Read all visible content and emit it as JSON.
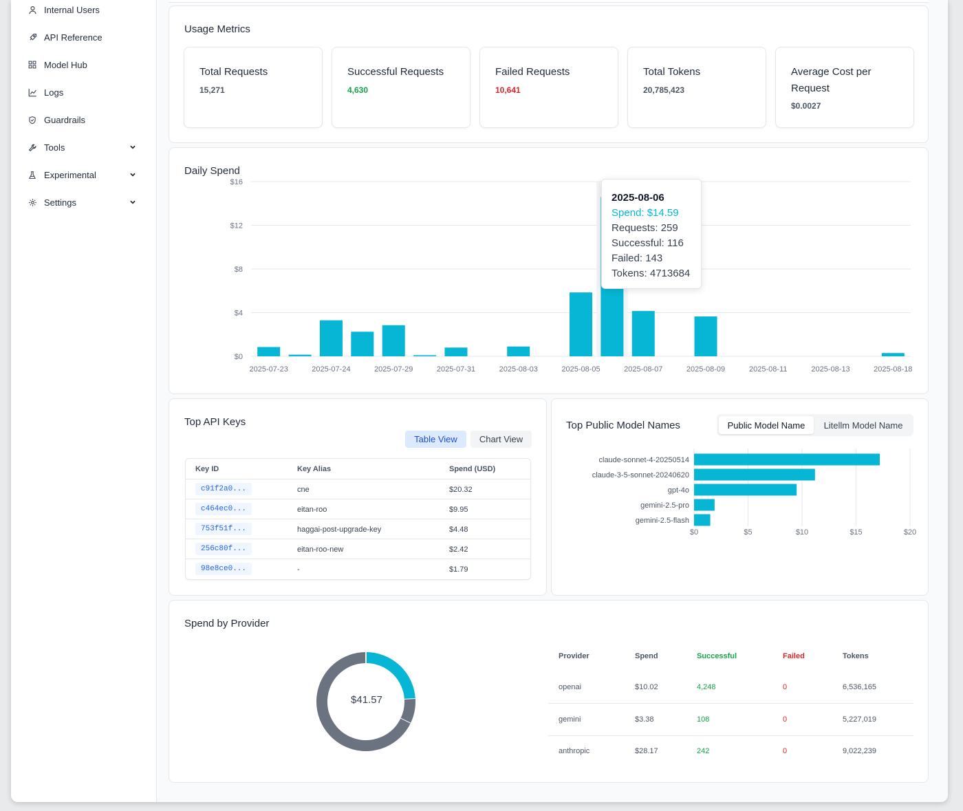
{
  "sidebar": {
    "items": [
      {
        "label": "Internal Users",
        "icon": "user-icon"
      },
      {
        "label": "API Reference",
        "icon": "rocket-icon"
      },
      {
        "label": "Model Hub",
        "icon": "grid-icon"
      },
      {
        "label": "Logs",
        "icon": "line-chart-icon"
      },
      {
        "label": "Guardrails",
        "icon": "shield-icon"
      },
      {
        "label": "Tools",
        "icon": "wrench-icon"
      },
      {
        "label": "Experimental",
        "icon": "flask-icon"
      },
      {
        "label": "Settings",
        "icon": "gear-icon"
      }
    ]
  },
  "usage": {
    "title": "Usage Metrics",
    "metrics": [
      {
        "label": "Total Requests",
        "value": "15,271"
      },
      {
        "label": "Successful Requests",
        "value": "4,630"
      },
      {
        "label": "Failed Requests",
        "value": "10,641"
      },
      {
        "label": "Total Tokens",
        "value": "20,785,423"
      },
      {
        "label": "Average Cost per Request",
        "value": "$0.0027"
      }
    ]
  },
  "colors": {
    "accent": "#06b6d4",
    "success": "#16a34a",
    "danger": "#dc2626",
    "donut_gray": "#6b7280"
  },
  "daily_spend": {
    "title": "Daily Spend",
    "tooltip": {
      "date": "2025-08-06",
      "spend": "Spend: $14.59",
      "requests": "Requests: 259",
      "successful": "Successful: 116",
      "failed": "Failed: 143",
      "tokens": "Tokens: 4713684"
    }
  },
  "top_keys": {
    "title": "Top API Keys",
    "table_view": "Table View",
    "chart_view": "Chart View",
    "columns": [
      "Key ID",
      "Key Alias",
      "Spend (USD)"
    ],
    "rows": [
      {
        "key": "c91f2a0...",
        "alias": "cne",
        "spend": "$20.32"
      },
      {
        "key": "c464ec0...",
        "alias": "eitan-roo",
        "spend": "$9.95"
      },
      {
        "key": "753f51f...",
        "alias": "haggai-post-upgrade-key",
        "spend": "$4.48"
      },
      {
        "key": "256c80f...",
        "alias": "eitan-roo-new",
        "spend": "$2.42"
      },
      {
        "key": "98e8ce0...",
        "alias": "-",
        "spend": "$1.79"
      }
    ]
  },
  "top_models": {
    "title": "Top Public Model Names",
    "tab_public": "Public Model Name",
    "tab_litellm": "Litellm Model Name"
  },
  "providers": {
    "title": "Spend by Provider",
    "total": "$41.57",
    "columns": [
      "Provider",
      "Spend",
      "Successful",
      "Failed",
      "Tokens"
    ],
    "rows": [
      {
        "provider": "openai",
        "spend": "$10.02",
        "successful": "4,248",
        "failed": "0",
        "tokens": "6,536,165"
      },
      {
        "provider": "gemini",
        "spend": "$3.38",
        "successful": "108",
        "failed": "0",
        "tokens": "5,227,019"
      },
      {
        "provider": "anthropic",
        "spend": "$28.17",
        "successful": "242",
        "failed": "0",
        "tokens": "9,022,239"
      }
    ]
  },
  "chart_data": [
    {
      "type": "bar",
      "title": "Daily Spend",
      "xlabel": "",
      "ylabel": "",
      "ylim": [
        0,
        16
      ],
      "y_ticks": [
        "$0",
        "$4",
        "$8",
        "$12",
        "$16"
      ],
      "x_tick_labels": [
        "2025-07-23",
        "2025-07-24",
        "2025-07-29",
        "2025-07-31",
        "2025-08-03",
        "2025-08-05",
        "2025-08-07",
        "2025-08-09",
        "2025-08-11",
        "2025-08-13",
        "2025-08-18"
      ],
      "categories": [
        "2025-07-23",
        "",
        "2025-07-24",
        "",
        "2025-07-29",
        "",
        "2025-07-31",
        "",
        "2025-08-03",
        "",
        "2025-08-05",
        "2025-08-06",
        "2025-08-07",
        "",
        "2025-08-09",
        "",
        "2025-08-11",
        "",
        "2025-08-13",
        "",
        "2025-08-18"
      ],
      "values": [
        0.85,
        0.15,
        3.3,
        2.25,
        2.85,
        0.1,
        0.8,
        0,
        0.9,
        0,
        5.85,
        14.59,
        4.15,
        0,
        3.65,
        0,
        0,
        0,
        0,
        0,
        0.3
      ],
      "grid": true
    },
    {
      "type": "bar",
      "orientation": "horizontal",
      "categories": [
        "claude-sonnet-4-20250514",
        "claude-3-5-sonnet-20240620",
        "gpt-4o",
        "gemini-2.5-pro",
        "gemini-2.5-flash"
      ],
      "values": [
        17.2,
        11.2,
        9.5,
        1.9,
        1.5
      ],
      "xlim": [
        0,
        20
      ],
      "x_ticks": [
        "$0",
        "$5",
        "$10",
        "$15",
        "$20"
      ]
    },
    {
      "type": "pie",
      "donut": true,
      "categories": [
        "openai",
        "gemini",
        "anthropic"
      ],
      "values": [
        10.02,
        3.38,
        28.17
      ],
      "center_label": "$41.57"
    }
  ]
}
